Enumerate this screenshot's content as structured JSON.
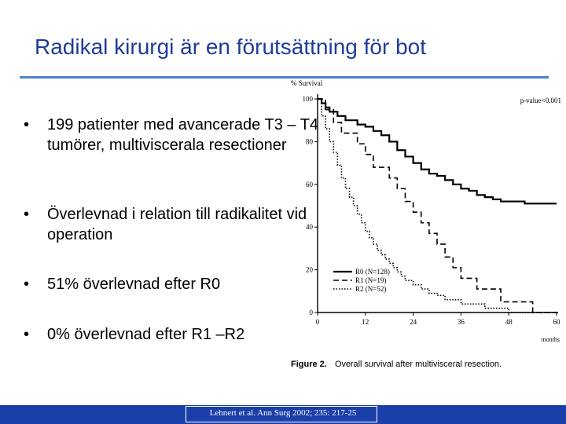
{
  "slide": {
    "title": "Radikal kirurgi är en förutsättning för bot",
    "bullets": [
      "199 patienter med avancerade T3 – T4 tumörer, multiviscerala resectioner",
      "Överlevnad i relation till radikalitet vid operation",
      "51% överlevnad efter R0",
      "0% överlevnad efter R1 –R2"
    ],
    "bullet_glyph": "•",
    "footer": "Lehnert et al. Ann Surg 2002; 235: 217-25"
  },
  "colors": {
    "title": "#1f3c99",
    "rule": "#4a82c9",
    "footer_bg": "#1a3fa8"
  },
  "chart_data": {
    "type": "line",
    "subtype": "kaplan-meier step",
    "ylabel": "% Survival",
    "xlabel": "months",
    "caption_label": "Figure 2.",
    "caption_text": "Overall survival after multivisceral resection.",
    "annotation": "p-value<0.001",
    "xlim": [
      0,
      60
    ],
    "ylim": [
      0,
      100
    ],
    "xticks": [
      0,
      12,
      24,
      36,
      48,
      60
    ],
    "yticks": [
      0,
      20,
      40,
      60,
      80,
      100
    ],
    "grid": false,
    "legend_position": "bottom-left",
    "series": [
      {
        "name": "R0 (N=128)",
        "style": "solid-thick",
        "points": [
          [
            0,
            100
          ],
          [
            1,
            98
          ],
          [
            2,
            96
          ],
          [
            3,
            94
          ],
          [
            5,
            92
          ],
          [
            7,
            90
          ],
          [
            10,
            88
          ],
          [
            12,
            87
          ],
          [
            14,
            85
          ],
          [
            16,
            83
          ],
          [
            18,
            80
          ],
          [
            20,
            76
          ],
          [
            22,
            73
          ],
          [
            24,
            70
          ],
          [
            26,
            67
          ],
          [
            28,
            65
          ],
          [
            30,
            64
          ],
          [
            32,
            62
          ],
          [
            34,
            60
          ],
          [
            36,
            58
          ],
          [
            38,
            57
          ],
          [
            40,
            55
          ],
          [
            42,
            54
          ],
          [
            44,
            53
          ],
          [
            46,
            52
          ],
          [
            48,
            52
          ],
          [
            50,
            52
          ],
          [
            52,
            51
          ],
          [
            54,
            51
          ],
          [
            56,
            51
          ],
          [
            58,
            51
          ],
          [
            60,
            51
          ]
        ]
      },
      {
        "name": "R1 (N=19)",
        "style": "dashed",
        "points": [
          [
            0,
            100
          ],
          [
            2,
            95
          ],
          [
            4,
            89
          ],
          [
            6,
            84
          ],
          [
            8,
            84
          ],
          [
            10,
            79
          ],
          [
            12,
            74
          ],
          [
            14,
            68
          ],
          [
            16,
            68
          ],
          [
            18,
            63
          ],
          [
            20,
            58
          ],
          [
            22,
            52
          ],
          [
            24,
            47
          ],
          [
            26,
            42
          ],
          [
            28,
            37
          ],
          [
            30,
            32
          ],
          [
            32,
            26
          ],
          [
            34,
            21
          ],
          [
            36,
            16
          ],
          [
            38,
            16
          ],
          [
            40,
            11
          ],
          [
            44,
            11
          ],
          [
            46,
            5
          ],
          [
            52,
            5
          ],
          [
            54,
            0
          ],
          [
            60,
            0
          ]
        ]
      },
      {
        "name": "R2 (N=52)",
        "style": "dotted",
        "points": [
          [
            0,
            100
          ],
          [
            1,
            92
          ],
          [
            2,
            86
          ],
          [
            3,
            80
          ],
          [
            4,
            75
          ],
          [
            5,
            69
          ],
          [
            6,
            63
          ],
          [
            7,
            58
          ],
          [
            8,
            54
          ],
          [
            9,
            50
          ],
          [
            10,
            46
          ],
          [
            11,
            42
          ],
          [
            12,
            38
          ],
          [
            13,
            35
          ],
          [
            14,
            32
          ],
          [
            15,
            29
          ],
          [
            16,
            27
          ],
          [
            17,
            25
          ],
          [
            18,
            23
          ],
          [
            19,
            21
          ],
          [
            20,
            19
          ],
          [
            21,
            17
          ],
          [
            22,
            15
          ],
          [
            24,
            13
          ],
          [
            26,
            11
          ],
          [
            28,
            9
          ],
          [
            30,
            8
          ],
          [
            32,
            6
          ],
          [
            34,
            6
          ],
          [
            36,
            4
          ],
          [
            40,
            4
          ],
          [
            42,
            2
          ],
          [
            46,
            2
          ],
          [
            48,
            0
          ],
          [
            60,
            0
          ]
        ]
      }
    ]
  }
}
